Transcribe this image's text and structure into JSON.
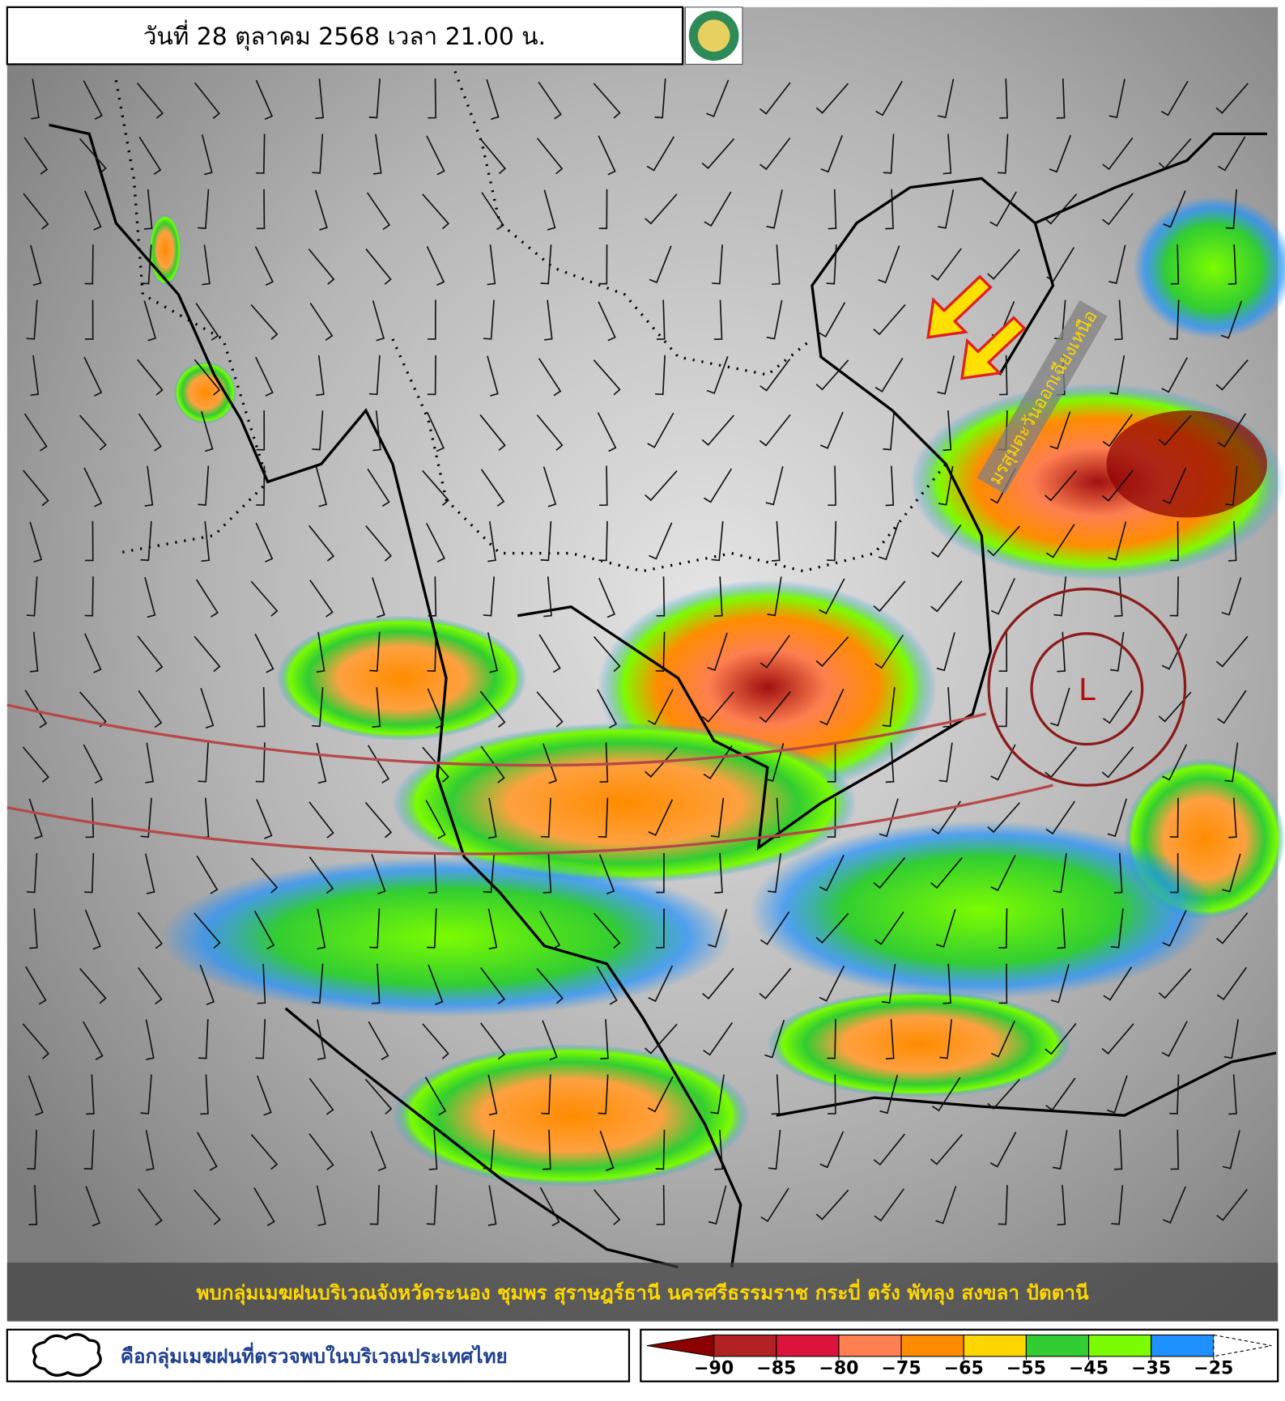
{
  "header": {
    "title": "วันที่ 28 ตุลาคม 2568 เวลา 21.00 น."
  },
  "map": {
    "annotations": {
      "monsoon": "มรสุมตะวันออกเฉียงเหนือ",
      "low": "L"
    },
    "caption": "พบกลุ่มเมฆฝนบริเวณจังหวัดระนอง ชุมพร สุราษฎร์ธานี นครศรีธรรมราช กระบี่ ตรัง พัทลุง สงขลา ปัตตานี"
  },
  "legend": {
    "cloud_label": "คือกลุ่มเมฆฝนที่ตรวจพบในบริเวณประเทศไทย"
  },
  "colorbar": {
    "colors": [
      "#8b0000",
      "#b22222",
      "#dc143c",
      "#ff7f50",
      "#ff8c00",
      "#ffd700",
      "#32cd32",
      "#7cfc00",
      "#1e90ff",
      "#ffffff"
    ],
    "ticks": [
      {
        "value": -90,
        "label": "−90"
      },
      {
        "value": -85,
        "label": "−85"
      },
      {
        "value": -80,
        "label": "−80"
      },
      {
        "value": -75,
        "label": "−75"
      },
      {
        "value": -65,
        "label": "−65"
      },
      {
        "value": -55,
        "label": "−55"
      },
      {
        "value": -45,
        "label": "−45"
      },
      {
        "value": -35,
        "label": "−35"
      },
      {
        "value": -25,
        "label": "−25"
      }
    ]
  }
}
